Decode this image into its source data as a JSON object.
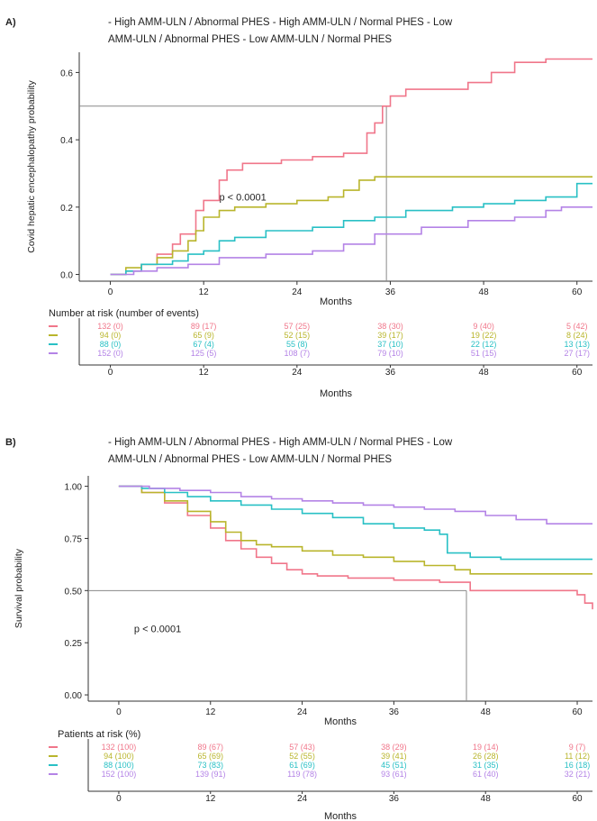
{
  "colors": {
    "series": [
      "#f0768a",
      "#b9b52c",
      "#29c0c5",
      "#b483e6"
    ],
    "axis": "#333333",
    "reference": "#888888",
    "text": "#222222"
  },
  "chart_data": [
    {
      "type": "line",
      "step": true,
      "panel_label": "A)",
      "legend_text": "- High AMM-ULN / Abnormal PHES - High AMM-ULN / Normal PHES - Low AMM-ULN / Abnormal PHES - Low AMM-ULN / Normal PHES",
      "legend_line1": "- High AMM-ULN / Abnormal PHES - High AMM-ULN / Normal PHES - Low",
      "legend_line2": "AMM-ULN / Abnormal PHES - Low AMM-ULN / Normal PHES",
      "ylabel": "Covid hepatic encephalopathy probability",
      "xlabel": "Months",
      "xlim": [
        -4,
        62
      ],
      "ylim": [
        -0.02,
        0.66
      ],
      "xticks": [
        "0",
        "12",
        "24",
        "36",
        "48",
        "60"
      ],
      "yticks": [
        "0.0",
        "0.2",
        "0.4",
        "0.6"
      ],
      "pvalue": "p < 0.0001",
      "reference_y": 0.5,
      "median_x": 35.5,
      "series": [
        {
          "points": [
            [
              0,
              0
            ],
            [
              2,
              0.01
            ],
            [
              4,
              0.03
            ],
            [
              6,
              0.06
            ],
            [
              8,
              0.09
            ],
            [
              9,
              0.12
            ],
            [
              11,
              0.19
            ],
            [
              12,
              0.22
            ],
            [
              14,
              0.28
            ],
            [
              15,
              0.31
            ],
            [
              17,
              0.33
            ],
            [
              22,
              0.34
            ],
            [
              26,
              0.35
            ],
            [
              30,
              0.36
            ],
            [
              33,
              0.42
            ],
            [
              34,
              0.45
            ],
            [
              35,
              0.5
            ],
            [
              36,
              0.53
            ],
            [
              38,
              0.55
            ],
            [
              46,
              0.57
            ],
            [
              49,
              0.6
            ],
            [
              52,
              0.63
            ],
            [
              56,
              0.64
            ],
            [
              62,
              0.64
            ]
          ]
        },
        {
          "points": [
            [
              0,
              0
            ],
            [
              2,
              0.02
            ],
            [
              4,
              0.03
            ],
            [
              6,
              0.05
            ],
            [
              8,
              0.07
            ],
            [
              10,
              0.1
            ],
            [
              11,
              0.13
            ],
            [
              12,
              0.17
            ],
            [
              14,
              0.19
            ],
            [
              16,
              0.2
            ],
            [
              20,
              0.21
            ],
            [
              24,
              0.22
            ],
            [
              28,
              0.23
            ],
            [
              30,
              0.25
            ],
            [
              32,
              0.28
            ],
            [
              34,
              0.29
            ],
            [
              62,
              0.29
            ]
          ]
        },
        {
          "points": [
            [
              0,
              0
            ],
            [
              2,
              0.01
            ],
            [
              4,
              0.03
            ],
            [
              8,
              0.04
            ],
            [
              10,
              0.06
            ],
            [
              12,
              0.07
            ],
            [
              14,
              0.1
            ],
            [
              16,
              0.11
            ],
            [
              20,
              0.13
            ],
            [
              26,
              0.14
            ],
            [
              30,
              0.16
            ],
            [
              34,
              0.17
            ],
            [
              38,
              0.19
            ],
            [
              44,
              0.2
            ],
            [
              48,
              0.21
            ],
            [
              52,
              0.22
            ],
            [
              56,
              0.23
            ],
            [
              60,
              0.27
            ],
            [
              62,
              0.27
            ]
          ]
        },
        {
          "points": [
            [
              0,
              0
            ],
            [
              3,
              0.01
            ],
            [
              6,
              0.02
            ],
            [
              10,
              0.03
            ],
            [
              14,
              0.05
            ],
            [
              20,
              0.06
            ],
            [
              26,
              0.07
            ],
            [
              30,
              0.09
            ],
            [
              34,
              0.12
            ],
            [
              40,
              0.14
            ],
            [
              46,
              0.16
            ],
            [
              52,
              0.17
            ],
            [
              56,
              0.19
            ],
            [
              58,
              0.2
            ],
            [
              62,
              0.2
            ]
          ]
        }
      ],
      "risk_table": {
        "title": "Number at risk (number of events)",
        "xlabel": "Months",
        "rows": [
          [
            "132 (0)",
            "89 (17)",
            "57 (25)",
            "38 (30)",
            "9 (40)",
            "5 (42)"
          ],
          [
            "94 (0)",
            "65 (9)",
            "52 (15)",
            "39 (17)",
            "19 (22)",
            "8 (24)"
          ],
          [
            "88 (0)",
            "67 (4)",
            "55 (8)",
            "37 (10)",
            "22 (12)",
            "13 (13)"
          ],
          [
            "152 (0)",
            "125 (5)",
            "108 (7)",
            "79 (10)",
            "51 (15)",
            "27 (17)"
          ]
        ]
      }
    },
    {
      "type": "line",
      "step": true,
      "panel_label": "B)",
      "legend_text": "- High AMM-ULN / Abnormal PHES - High AMM-ULN / Normal PHES - Low AMM-ULN / Abnormal PHES - Low AMM-ULN / Normal PHES",
      "legend_line1": "- High AMM-ULN / Abnormal PHES - High AMM-ULN / Normal PHES - Low",
      "legend_line2": "AMM-ULN / Abnormal PHES - Low AMM-ULN / Normal PHES",
      "ylabel": "Survival probability",
      "xlabel": "Months",
      "xlim": [
        -4,
        62
      ],
      "ylim": [
        -0.03,
        1.05
      ],
      "xticks": [
        "0",
        "12",
        "24",
        "36",
        "48",
        "60"
      ],
      "yticks": [
        "0.00",
        "0.25",
        "0.50",
        "0.75",
        "1.00"
      ],
      "pvalue": "p < 0.0001",
      "reference_y": 0.5,
      "median_x": 45.5,
      "series": [
        {
          "points": [
            [
              0,
              1
            ],
            [
              3,
              0.97
            ],
            [
              6,
              0.92
            ],
            [
              9,
              0.86
            ],
            [
              12,
              0.8
            ],
            [
              14,
              0.74
            ],
            [
              16,
              0.7
            ],
            [
              18,
              0.66
            ],
            [
              20,
              0.63
            ],
            [
              22,
              0.6
            ],
            [
              24,
              0.58
            ],
            [
              26,
              0.57
            ],
            [
              30,
              0.56
            ],
            [
              36,
              0.55
            ],
            [
              42,
              0.54
            ],
            [
              46,
              0.5
            ],
            [
              60,
              0.48
            ],
            [
              61,
              0.44
            ],
            [
              62,
              0.41
            ]
          ]
        },
        {
          "points": [
            [
              0,
              1
            ],
            [
              3,
              0.97
            ],
            [
              6,
              0.93
            ],
            [
              9,
              0.88
            ],
            [
              12,
              0.83
            ],
            [
              14,
              0.78
            ],
            [
              16,
              0.74
            ],
            [
              18,
              0.72
            ],
            [
              20,
              0.71
            ],
            [
              24,
              0.69
            ],
            [
              28,
              0.67
            ],
            [
              32,
              0.66
            ],
            [
              36,
              0.64
            ],
            [
              40,
              0.62
            ],
            [
              44,
              0.6
            ],
            [
              46,
              0.58
            ],
            [
              62,
              0.58
            ]
          ]
        },
        {
          "points": [
            [
              0,
              1
            ],
            [
              3,
              0.99
            ],
            [
              6,
              0.97
            ],
            [
              9,
              0.95
            ],
            [
              12,
              0.93
            ],
            [
              16,
              0.91
            ],
            [
              20,
              0.89
            ],
            [
              24,
              0.87
            ],
            [
              28,
              0.85
            ],
            [
              32,
              0.82
            ],
            [
              36,
              0.8
            ],
            [
              40,
              0.79
            ],
            [
              42,
              0.77
            ],
            [
              43,
              0.68
            ],
            [
              46,
              0.66
            ],
            [
              50,
              0.65
            ],
            [
              62,
              0.65
            ]
          ]
        },
        {
          "points": [
            [
              0,
              1
            ],
            [
              4,
              0.99
            ],
            [
              8,
              0.98
            ],
            [
              12,
              0.97
            ],
            [
              16,
              0.95
            ],
            [
              20,
              0.94
            ],
            [
              24,
              0.93
            ],
            [
              28,
              0.92
            ],
            [
              32,
              0.91
            ],
            [
              36,
              0.9
            ],
            [
              40,
              0.89
            ],
            [
              44,
              0.88
            ],
            [
              48,
              0.86
            ],
            [
              52,
              0.84
            ],
            [
              56,
              0.82
            ],
            [
              62,
              0.82
            ]
          ]
        }
      ],
      "risk_table": {
        "title": "Patients at risk (%)",
        "xlabel": "Months",
        "rows": [
          [
            "132 (100)",
            "89 (67)",
            "57 (43)",
            "38 (29)",
            "19 (14)",
            "9 (7)"
          ],
          [
            "94 (100)",
            "65 (69)",
            "52 (55)",
            "39 (41)",
            "26 (28)",
            "11 (12)"
          ],
          [
            "88 (100)",
            "73 (83)",
            "61 (69)",
            "45 (51)",
            "31 (35)",
            "16 (18)"
          ],
          [
            "152 (100)",
            "139 (91)",
            "119 (78)",
            "93 (61)",
            "61 (40)",
            "32 (21)"
          ]
        ]
      }
    }
  ]
}
